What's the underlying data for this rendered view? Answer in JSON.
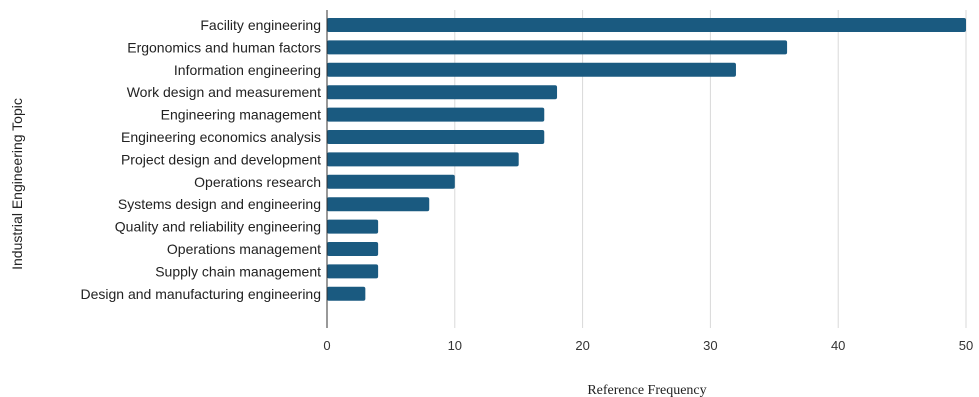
{
  "chart_data": {
    "type": "bar",
    "orientation": "horizontal",
    "categories": [
      "Facility engineering",
      "Ergonomics and human factors",
      "Information engineering",
      "Work design and measurement",
      "Engineering management",
      "Engineering economics analysis",
      "Project design and development",
      "Operations research",
      "Systems design and engineering",
      "Quality and reliability engineering",
      "Operations management",
      "Supply chain management",
      "Design and manufacturing engineering"
    ],
    "values": [
      50,
      36,
      32,
      18,
      17,
      17,
      15,
      10,
      8,
      4,
      4,
      4,
      3
    ],
    "xlabel": "Reference Frequency",
    "ylabel": "Industrial Engineering Topic",
    "xlim": [
      0,
      50
    ],
    "xticks": [
      0,
      10,
      20,
      30,
      40,
      50
    ],
    "grid": "vertical",
    "legend": "none",
    "bar_color": "#1a5a80",
    "grid_color": "#d9d9d9",
    "axis_color": "#333333"
  }
}
